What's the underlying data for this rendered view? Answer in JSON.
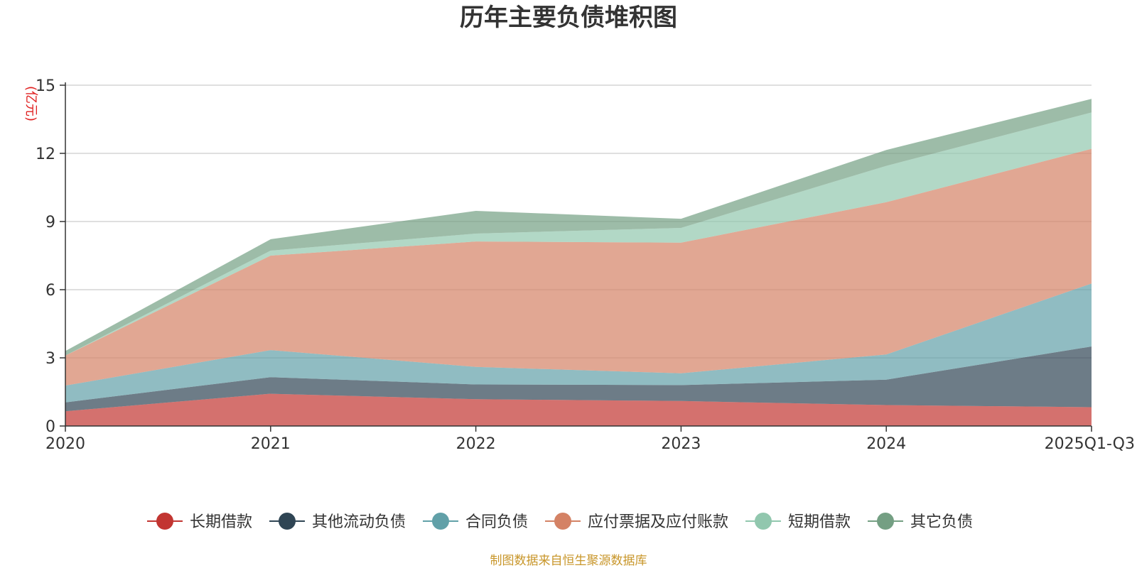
{
  "chart_data": {
    "type": "area",
    "stacked": true,
    "title": "历年主要负债堆积图",
    "unit_label": "(亿元)",
    "categories": [
      "2020",
      "2021",
      "2022",
      "2023",
      "2024",
      "2025Q1-Q3"
    ],
    "y_ticks": [
      "0",
      "3",
      "6",
      "9",
      "12",
      "15"
    ],
    "ylim": [
      0,
      15
    ],
    "grid": true,
    "legend_position": "bottom",
    "series": [
      {
        "name": "长期借款",
        "values": [
          0.65,
          1.42,
          1.18,
          1.1,
          0.92,
          0.83
        ],
        "color": "#c23531"
      },
      {
        "name": "其他流动负债",
        "values": [
          0.39,
          0.73,
          0.65,
          0.7,
          1.12,
          2.67
        ],
        "color": "#2f4554"
      },
      {
        "name": "合同负债",
        "values": [
          0.74,
          1.19,
          0.77,
          0.52,
          1.11,
          2.77
        ],
        "color": "#61a0a8"
      },
      {
        "name": "应付票据及应付账款",
        "values": [
          1.32,
          4.16,
          5.52,
          5.75,
          6.7,
          5.93
        ],
        "color": "#d48265"
      },
      {
        "name": "短期借款",
        "values": [
          0.0,
          0.22,
          0.35,
          0.65,
          1.6,
          1.6
        ],
        "color": "#91c7ae"
      },
      {
        "name": "其它负债",
        "values": [
          0.2,
          0.5,
          1.0,
          0.4,
          0.7,
          0.6
        ],
        "color": "#749f83"
      }
    ],
    "source": "制图数据来自恒生聚源数据库"
  }
}
